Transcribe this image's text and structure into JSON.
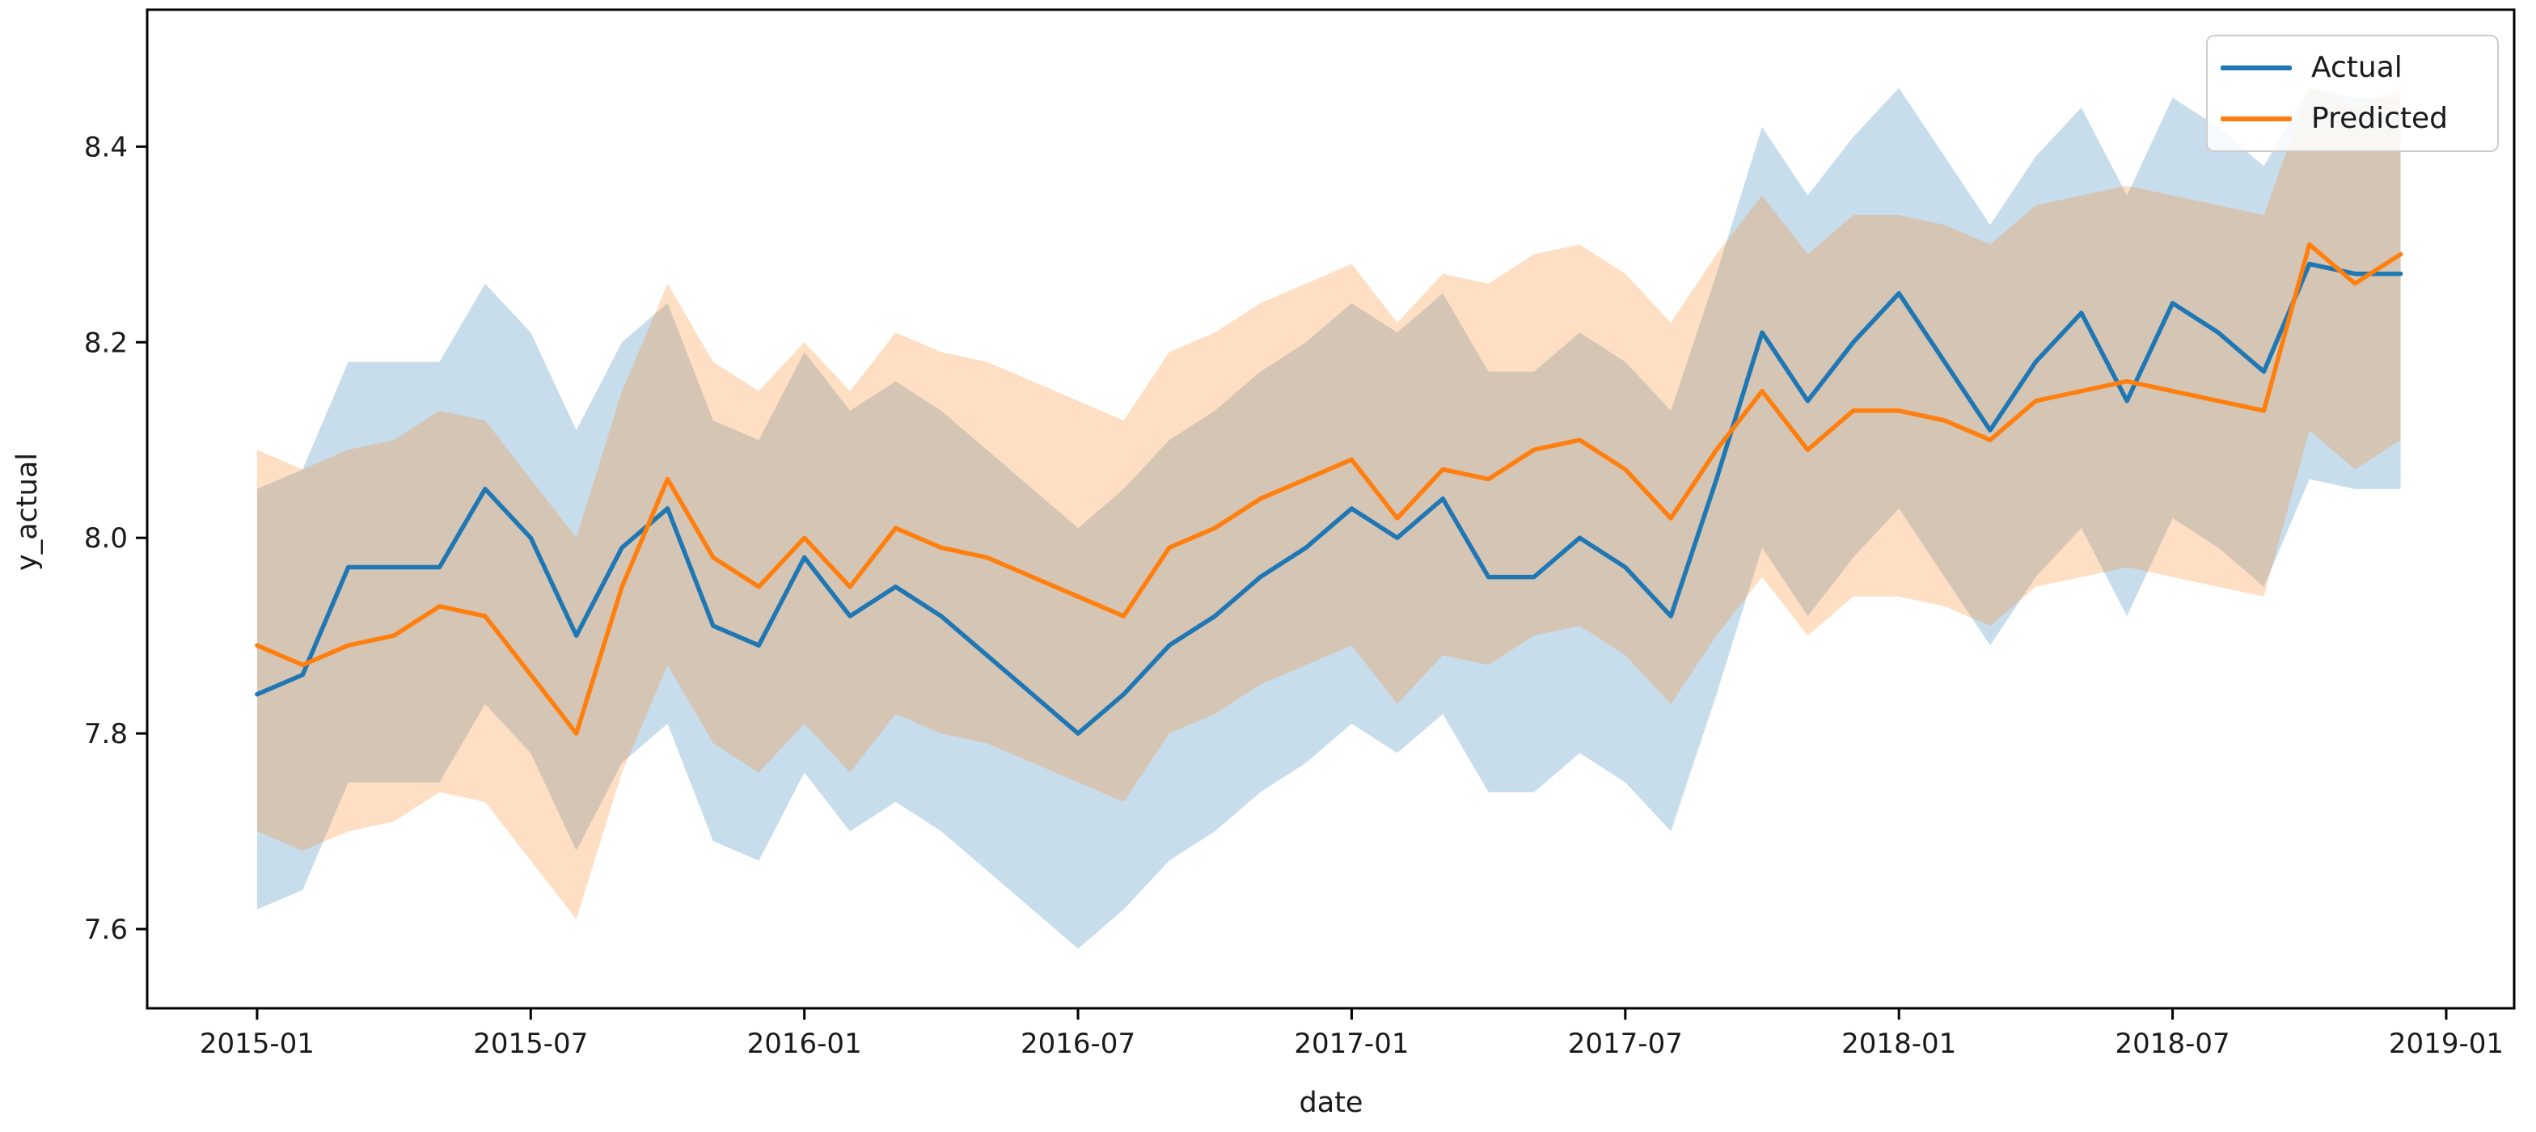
{
  "figure": {
    "background": "#ffffff",
    "x_axis_label": "date",
    "y_axis_label": "y_actual"
  },
  "legend": {
    "position": "upper right",
    "entries": [
      {
        "label": "Actual",
        "color": "#1f77b4"
      },
      {
        "label": "Predicted",
        "color": "#ff7f0e"
      }
    ]
  },
  "chart_data": {
    "type": "line",
    "title": "",
    "xlabel": "date",
    "ylabel": "y_actual",
    "grid": false,
    "legend_position": "upper right",
    "x_index_range": [
      -2.41,
      49.49
    ],
    "ylim": [
      7.519,
      8.54
    ],
    "y_ticks": [
      7.6,
      7.8,
      8.0,
      8.2,
      8.4
    ],
    "x_tick_indices": [
      0,
      6,
      12,
      18,
      24,
      30,
      36,
      42,
      48
    ],
    "x_tick_labels": [
      "2015-01",
      "2015-07",
      "2016-01",
      "2016-07",
      "2017-01",
      "2017-07",
      "2018-01",
      "2018-07",
      "2019-01"
    ],
    "dates": [
      "2015-01",
      "2015-02",
      "2015-03",
      "2015-04",
      "2015-05",
      "2015-06",
      "2015-07",
      "2015-08",
      "2015-09",
      "2015-10",
      "2015-11",
      "2015-12",
      "2016-01",
      "2016-02",
      "2016-03",
      "2016-04",
      "2016-05",
      "2016-06",
      "2016-07",
      "2016-08",
      "2016-09",
      "2016-10",
      "2016-11",
      "2016-12",
      "2017-01",
      "2017-02",
      "2017-03",
      "2017-04",
      "2017-05",
      "2017-06",
      "2017-07",
      "2017-08",
      "2017-09",
      "2017-10",
      "2017-11",
      "2017-12",
      "2018-01",
      "2018-02",
      "2018-03",
      "2018-04",
      "2018-05",
      "2018-06",
      "2018-07",
      "2018-08",
      "2018-09",
      "2018-10",
      "2018-11",
      "2018-12"
    ],
    "series": [
      {
        "name": "Actual",
        "color": "#1f77b4",
        "band_opacity": 0.25,
        "values": [
          7.84,
          7.86,
          7.97,
          7.97,
          7.97,
          8.05,
          8.0,
          7.9,
          7.99,
          8.03,
          7.91,
          7.89,
          7.98,
          7.92,
          7.95,
          7.92,
          7.88,
          7.84,
          7.8,
          7.84,
          7.89,
          7.92,
          7.96,
          7.99,
          8.03,
          8.0,
          8.04,
          7.96,
          7.96,
          8.0,
          7.97,
          7.92,
          8.06,
          8.21,
          8.14,
          8.2,
          8.25,
          8.18,
          8.11,
          8.18,
          8.23,
          8.14,
          8.24,
          8.21,
          8.17,
          8.28,
          8.27,
          8.27
        ],
        "band_upper": [
          8.05,
          8.07,
          8.18,
          8.18,
          8.18,
          8.26,
          8.21,
          8.11,
          8.2,
          8.24,
          8.12,
          8.1,
          8.19,
          8.13,
          8.16,
          8.13,
          8.09,
          8.05,
          8.01,
          8.05,
          8.1,
          8.13,
          8.17,
          8.2,
          8.24,
          8.21,
          8.25,
          8.17,
          8.17,
          8.21,
          8.18,
          8.13,
          8.27,
          8.42,
          8.35,
          8.41,
          8.46,
          8.39,
          8.32,
          8.39,
          8.44,
          8.35,
          8.45,
          8.42,
          8.38,
          8.46,
          8.45,
          8.45
        ],
        "band_lower": [
          7.62,
          7.64,
          7.75,
          7.75,
          7.75,
          7.83,
          7.78,
          7.68,
          7.77,
          7.81,
          7.69,
          7.67,
          7.76,
          7.7,
          7.73,
          7.7,
          7.66,
          7.62,
          7.58,
          7.62,
          7.67,
          7.7,
          7.74,
          7.77,
          7.81,
          7.78,
          7.82,
          7.74,
          7.74,
          7.78,
          7.75,
          7.7,
          7.84,
          7.99,
          7.92,
          7.98,
          8.03,
          7.96,
          7.89,
          7.96,
          8.01,
          7.92,
          8.02,
          7.99,
          7.95,
          8.06,
          8.05,
          8.05
        ]
      },
      {
        "name": "Predicted",
        "color": "#ff7f0e",
        "band_opacity": 0.25,
        "values": [
          7.89,
          7.87,
          7.89,
          7.9,
          7.93,
          7.92,
          7.86,
          7.8,
          7.95,
          8.06,
          7.98,
          7.95,
          8.0,
          7.95,
          8.01,
          7.99,
          7.98,
          7.96,
          7.94,
          7.92,
          7.99,
          8.01,
          8.04,
          8.06,
          8.08,
          8.02,
          8.07,
          8.06,
          8.09,
          8.1,
          8.07,
          8.02,
          8.09,
          8.15,
          8.09,
          8.13,
          8.13,
          8.12,
          8.1,
          8.14,
          8.15,
          8.16,
          8.15,
          8.14,
          8.13,
          8.3,
          8.26,
          8.29
        ],
        "band_upper": [
          8.09,
          8.07,
          8.09,
          8.1,
          8.13,
          8.12,
          8.06,
          8.0,
          8.15,
          8.26,
          8.18,
          8.15,
          8.2,
          8.15,
          8.21,
          8.19,
          8.18,
          8.16,
          8.14,
          8.12,
          8.19,
          8.21,
          8.24,
          8.26,
          8.28,
          8.22,
          8.27,
          8.26,
          8.29,
          8.3,
          8.27,
          8.22,
          8.29,
          8.35,
          8.29,
          8.33,
          8.33,
          8.32,
          8.3,
          8.34,
          8.35,
          8.36,
          8.35,
          8.34,
          8.33,
          8.46,
          8.44,
          8.46
        ],
        "band_lower": [
          7.7,
          7.68,
          7.7,
          7.71,
          7.74,
          7.73,
          7.67,
          7.61,
          7.76,
          7.87,
          7.79,
          7.76,
          7.81,
          7.76,
          7.82,
          7.8,
          7.79,
          7.77,
          7.75,
          7.73,
          7.8,
          7.82,
          7.85,
          7.87,
          7.89,
          7.83,
          7.88,
          7.87,
          7.9,
          7.91,
          7.88,
          7.83,
          7.9,
          7.96,
          7.9,
          7.94,
          7.94,
          7.93,
          7.91,
          7.95,
          7.96,
          7.97,
          7.96,
          7.95,
          7.94,
          8.11,
          8.07,
          8.1
        ]
      }
    ]
  }
}
